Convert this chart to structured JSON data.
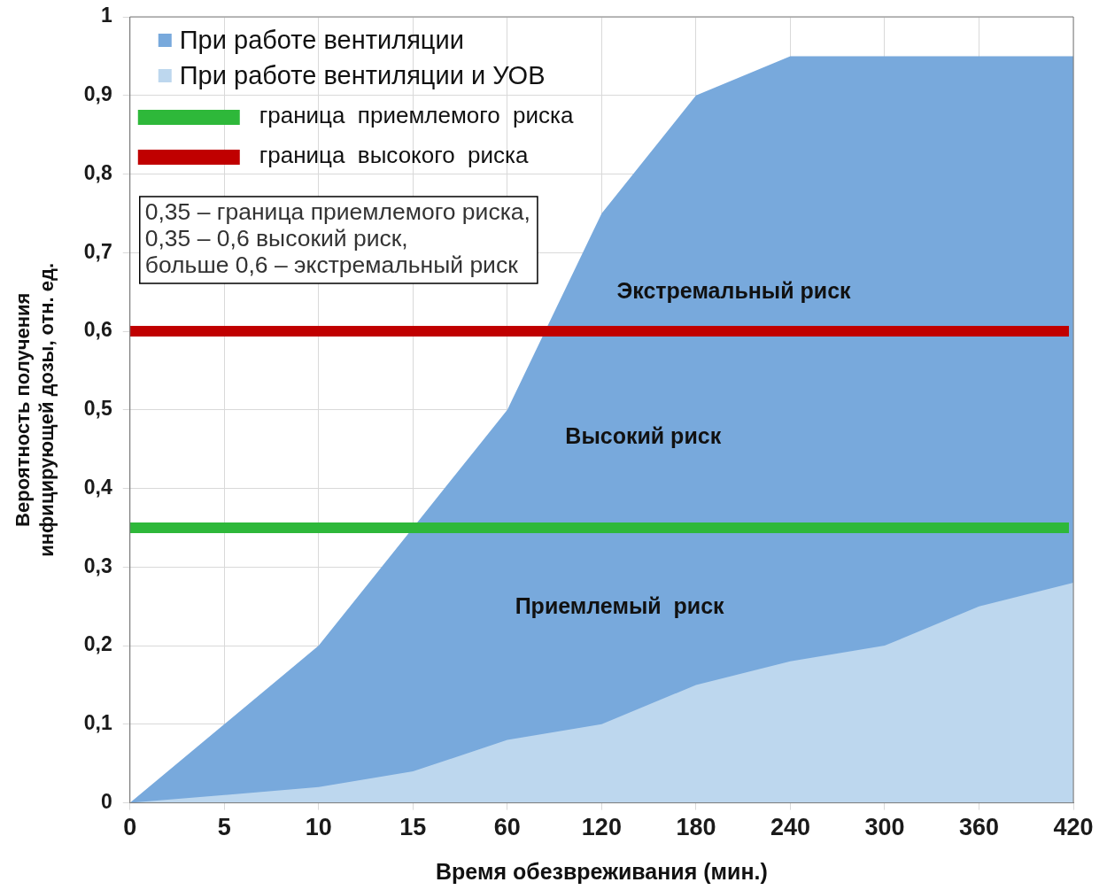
{
  "chart_data": {
    "type": "area",
    "xlabel": "Время обезвреживания (мин.)",
    "ylabel": "Вероятность получения инфицирующей дозы, отн. ед.",
    "categories": [
      "0",
      "5",
      "10",
      "15",
      "60",
      "120",
      "180",
      "240",
      "300",
      "360",
      "420"
    ],
    "series": [
      {
        "name": "При работе вентиляции",
        "color": "#78a9dc",
        "values": [
          0,
          0.1,
          0.2,
          0.35,
          0.5,
          0.75,
          0.9,
          0.95,
          0.95,
          0.95,
          0.95
        ]
      },
      {
        "name": "При работе вентиляции и УОВ",
        "color": "#bdd7ee",
        "values": [
          0,
          0.01,
          0.02,
          0.04,
          0.08,
          0.1,
          0.15,
          0.18,
          0.2,
          0.25,
          0.28
        ]
      }
    ],
    "ylim": [
      0,
      1
    ],
    "yticks": [
      0,
      {
        "value": 0.1,
        "label": "0,1"
      },
      {
        "value": 0.2,
        "label": "0,2"
      },
      {
        "value": 0.3,
        "label": "0,3"
      },
      {
        "value": 0.4,
        "label": "0,4"
      },
      {
        "value": 0.5,
        "label": "0,5"
      },
      {
        "value": 0.6,
        "label": "0,6"
      },
      {
        "value": 0.7,
        "label": "0,7"
      },
      {
        "value": 0.8,
        "label": "0,8"
      },
      {
        "value": 0.9,
        "label": "0,9"
      },
      1
    ],
    "ref_lines": [
      {
        "axis": "y",
        "value": 0.35,
        "label": "граница  приемлемого  риска",
        "color": "#2eb83a"
      },
      {
        "axis": "y",
        "value": 0.6,
        "label": "граница  высокого  риска",
        "color": "#c00000"
      }
    ],
    "annotations": [
      "0,35 – граница приемлемого риска,\n0,35 – 0,6 высокий риск,\nбольше 0,6 – экстремальный риск",
      "Экстремальный риск",
      "Высокий риск",
      "Приемлемый  риск"
    ],
    "grid": true,
    "legend": "top left",
    "marker": "none"
  }
}
